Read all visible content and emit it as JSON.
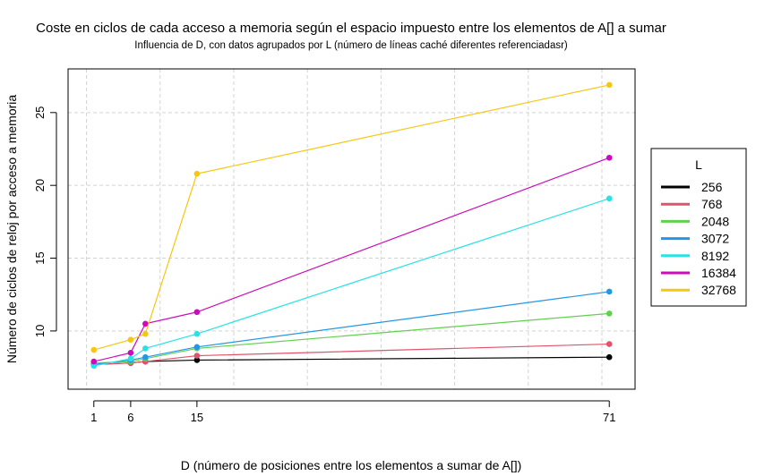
{
  "chart_data": {
    "type": "line",
    "title": "Coste en ciclos de cada acceso a memoria según el espacio impuesto entre los elementos de A[] a sumar",
    "subtitle": "Influencia de D, con datos agrupados por L (número de líneas caché diferentes referenciadasr)",
    "xlabel": "D (número de posiciones entre los elementos a sumar de A[])",
    "ylabel": "Número de ciclos de reloj por acceso a memoria",
    "x": [
      1,
      6,
      8,
      15,
      71
    ],
    "x_ticks": [
      "1",
      "6",
      "15",
      "71"
    ],
    "y_ticks": [
      "10",
      "15",
      "20",
      "25"
    ],
    "xlim": [
      -2.5,
      74.5
    ],
    "ylim": [
      6.0,
      28.0
    ],
    "grid": true,
    "legend_title": "L",
    "legend_position": "right",
    "series": [
      {
        "name": "256",
        "color": "#000000",
        "values": [
          7.7,
          7.8,
          7.9,
          8.0,
          8.2
        ]
      },
      {
        "name": "768",
        "color": "#DF536B",
        "values": [
          7.7,
          7.8,
          7.9,
          8.3,
          9.1
        ]
      },
      {
        "name": "2048",
        "color": "#61D04F",
        "values": [
          7.8,
          7.9,
          8.1,
          8.8,
          11.2
        ]
      },
      {
        "name": "3072",
        "color": "#2297E6",
        "values": [
          7.7,
          8.0,
          8.2,
          8.9,
          12.7
        ]
      },
      {
        "name": "8192",
        "color": "#28E2E5",
        "values": [
          7.6,
          8.1,
          8.8,
          9.8,
          19.1
        ]
      },
      {
        "name": "16384",
        "color": "#CD0BBC",
        "values": [
          7.9,
          8.5,
          10.5,
          11.3,
          21.9
        ]
      },
      {
        "name": "32768",
        "color": "#F5C710",
        "values": [
          8.7,
          9.4,
          9.8,
          20.8,
          26.9
        ]
      }
    ]
  }
}
